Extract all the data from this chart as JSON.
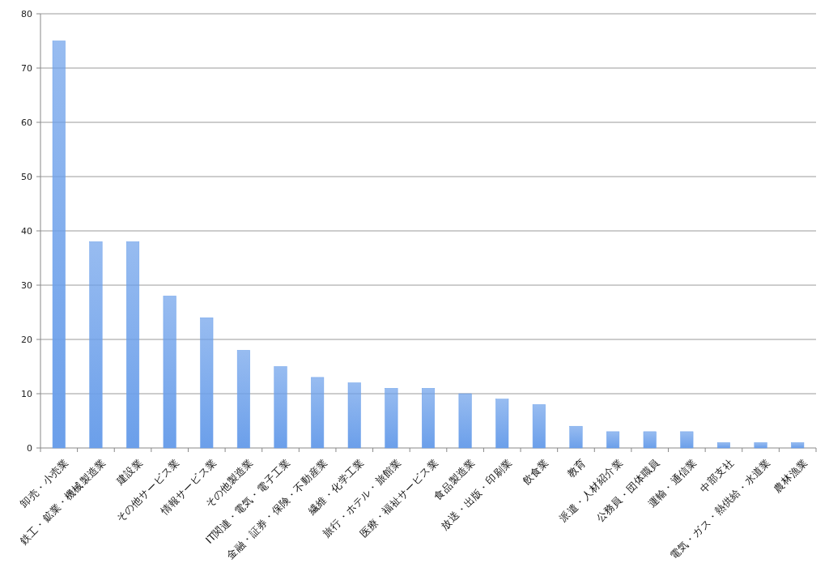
{
  "chart_data": {
    "type": "bar",
    "categories": [
      "卸売・小売業",
      "鉄工・鉱業・機械製造業",
      "建設業",
      "その他サービス業",
      "情報サービス業",
      "その他製造業",
      "IT関連・電気・電子工業",
      "金融・証券・保険・不動産業",
      "繊維・化学工業",
      "旅行・ホテル・旅館業",
      "医療・福祉サービス業",
      "食品製造業",
      "放送・出版・印刷業",
      "飲食業",
      "教育",
      "派遣・人材紹介業",
      "公務員・団体職員",
      "運輸・通信業",
      "中部支社",
      "電気・ガス・熱供給・水道業",
      "農林漁業"
    ],
    "values": [
      75,
      38,
      38,
      28,
      24,
      18,
      15,
      13,
      12,
      11,
      11,
      10,
      9,
      8,
      4,
      3,
      3,
      3,
      1,
      1,
      1
    ],
    "color": "#6b9fea",
    "ylim": [
      0,
      80
    ],
    "yticks": [
      0,
      10,
      20,
      30,
      40,
      50,
      60,
      70,
      80
    ],
    "grid": "y"
  }
}
